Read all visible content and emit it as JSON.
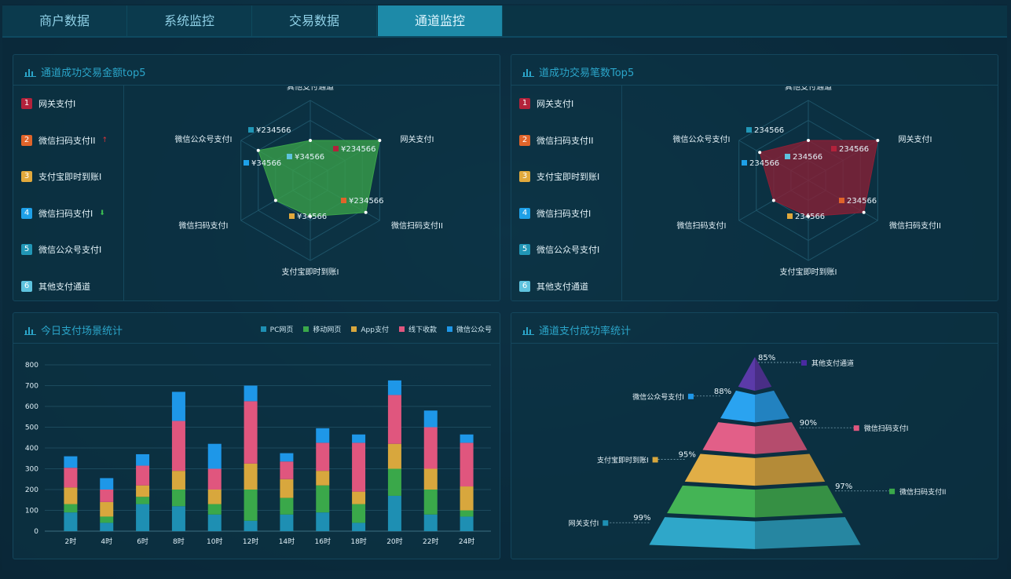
{
  "tabs": [
    {
      "label": "商户数据",
      "active": false
    },
    {
      "label": "系统监控",
      "active": false
    },
    {
      "label": "交易数据",
      "active": false
    },
    {
      "label": "通道监控",
      "active": true
    }
  ],
  "panels": {
    "amount_top5": {
      "title": "通道成功交易金额top5",
      "ranking": [
        {
          "no": "1",
          "label": "网关支付I",
          "color": "#b3223b"
        },
        {
          "no": "2",
          "label": "微信扫码支付II",
          "color": "#e0642a",
          "trend": "up",
          "trend_glyph": "↑",
          "trend_color": "#d8343a"
        },
        {
          "no": "3",
          "label": "支付宝即时到账I",
          "color": "#e1a93c"
        },
        {
          "no": "4",
          "label": "微信扫码支付I",
          "color": "#1ea0e8",
          "trend": "down",
          "trend_glyph": "⬇",
          "trend_color": "#3bbd52"
        },
        {
          "no": "5",
          "label": "微信公众号支付I",
          "color": "#2196b6"
        },
        {
          "no": "6",
          "label": "其他支付通道",
          "color": "#5ec3de"
        }
      ],
      "radar": {
        "axes": [
          "其他支付通道",
          "网关支付I",
          "微信扫码支付II",
          "支付宝即时到账I",
          "微信扫码支付I",
          "微信公众号支付I"
        ],
        "values": [
          "¥34566",
          "¥234566",
          "¥234566",
          "¥34566",
          "¥34566",
          "¥234566"
        ],
        "fill": "#3aa24a"
      }
    },
    "count_top5": {
      "title": "道成功交易笔数Top5",
      "ranking": [
        {
          "no": "1",
          "label": "网关支付I",
          "color": "#b3223b"
        },
        {
          "no": "2",
          "label": "微信扫码支付II",
          "color": "#e0642a"
        },
        {
          "no": "3",
          "label": "支付宝即时到账I",
          "color": "#e1a93c"
        },
        {
          "no": "4",
          "label": "微信扫码支付I",
          "color": "#1ea0e8"
        },
        {
          "no": "5",
          "label": "微信公众号支付I",
          "color": "#2196b6"
        },
        {
          "no": "6",
          "label": "其他支付通道",
          "color": "#5ec3de"
        }
      ],
      "radar": {
        "axes": [
          "其他支付通道",
          "网关支付I",
          "微信扫码支付II",
          "支付宝即时到账I",
          "微信扫码支付I",
          "微信公众号支付I"
        ],
        "values": [
          "234566",
          "234566",
          "234566",
          "234566",
          "234566",
          "234566"
        ],
        "fill": "#8a2036"
      }
    },
    "scene_stats": {
      "title": "今日支付场景统计"
    },
    "success_rate": {
      "title": "通道支付成功率统计"
    }
  },
  "chart_data": [
    {
      "type": "bar",
      "stacked": true,
      "categories": [
        "2时",
        "4时",
        "6时",
        "8时",
        "10时",
        "12时",
        "14时",
        "16时",
        "18时",
        "20时",
        "22时",
        "24时"
      ],
      "ylim": [
        0,
        800
      ],
      "yticks": [
        0,
        100,
        200,
        300,
        400,
        500,
        600,
        700,
        800
      ],
      "grid": true,
      "legend_position": "top-right",
      "series": [
        {
          "name": "PC网页",
          "color": "#1e8fb3",
          "values": [
            90,
            40,
            130,
            120,
            80,
            50,
            80,
            90,
            40,
            170,
            80,
            70
          ]
        },
        {
          "name": "移动网页",
          "color": "#3aa84a",
          "values": [
            40,
            30,
            35,
            80,
            50,
            150,
            80,
            130,
            90,
            130,
            120,
            30
          ]
        },
        {
          "name": "App支付",
          "color": "#d8a73d",
          "values": [
            80,
            70,
            55,
            90,
            70,
            125,
            90,
            70,
            60,
            120,
            100,
            115
          ]
        },
        {
          "name": "线下收款",
          "color": "#e0567e",
          "values": [
            95,
            60,
            95,
            240,
            100,
            300,
            85,
            135,
            235,
            235,
            200,
            210
          ]
        },
        {
          "name": "微信公众号",
          "color": "#1e97e8",
          "values": [
            55,
            55,
            55,
            140,
            120,
            75,
            40,
            70,
            40,
            70,
            80,
            40
          ]
        }
      ]
    },
    {
      "type": "pyramid",
      "levels": [
        {
          "label": "其他支付通道",
          "value": "85%",
          "color": "#5b3aa8",
          "marker": "#4a2aa0"
        },
        {
          "label": "微信公众号支付I",
          "value": "88%",
          "color": "#2aa3f0",
          "marker": "#1e97e8"
        },
        {
          "label": "微信扫码支付I",
          "value": "90%",
          "color": "#e25f88",
          "marker": "#e0567e"
        },
        {
          "label": "支付宝即时到账I",
          "value": "95%",
          "color": "#e1ae46",
          "marker": "#d8a73d"
        },
        {
          "label": "微信扫码支付II",
          "value": "97%",
          "color": "#44b455",
          "marker": "#3aa84a"
        },
        {
          "label": "网关支付I",
          "value": "99%",
          "color": "#2fa7c9",
          "marker": "#1e8fb3"
        }
      ]
    }
  ]
}
